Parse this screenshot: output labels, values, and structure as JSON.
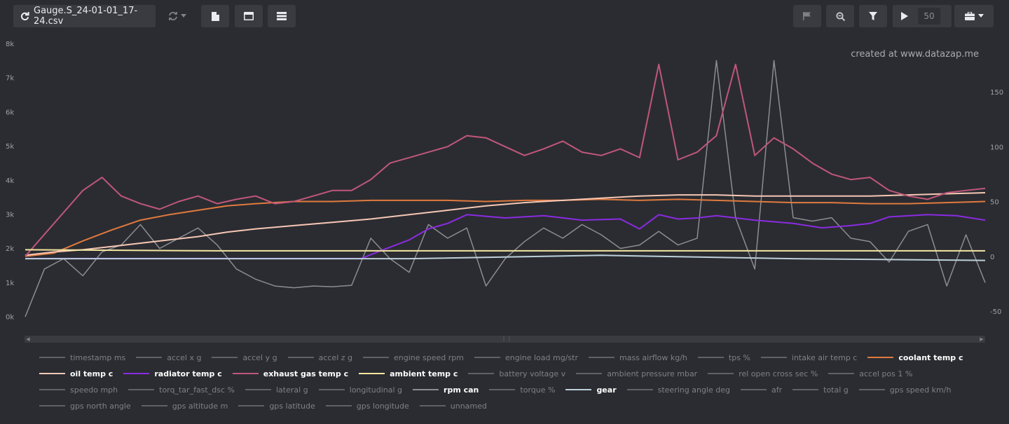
{
  "toolbar": {
    "file_name": "Gauge.S_24-01-01_17-24.csv",
    "playback_speed": "50"
  },
  "chart": {
    "watermark": "created at www.datazap.me"
  },
  "chart_data": {
    "type": "line",
    "xlabel": "",
    "ylabel": "",
    "y_left_ticks": [
      "8k",
      "7k",
      "6k",
      "5k",
      "4k",
      "3k",
      "2k",
      "1k",
      "0k"
    ],
    "y_right_ticks": [
      "150",
      "100",
      "50",
      "0",
      "-50"
    ],
    "ylim_left": [
      0,
      8000
    ],
    "ylim_right": [
      -50,
      150
    ],
    "grid": false,
    "series": [
      {
        "name": "rpm can",
        "color": "#8b8d91",
        "axis": "left",
        "x": [
          0,
          0.02,
          0.04,
          0.06,
          0.08,
          0.1,
          0.12,
          0.14,
          0.16,
          0.18,
          0.2,
          0.22,
          0.24,
          0.26,
          0.28,
          0.3,
          0.32,
          0.34,
          0.36,
          0.38,
          0.4,
          0.42,
          0.44,
          0.46,
          0.48,
          0.5,
          0.52,
          0.54,
          0.56,
          0.58,
          0.6,
          0.62,
          0.64,
          0.66,
          0.68,
          0.7,
          0.72,
          0.74,
          0.76,
          0.78,
          0.8,
          0.82,
          0.84,
          0.86,
          0.88,
          0.9,
          0.92,
          0.94,
          0.96,
          0.98,
          1
        ],
        "values": [
          0,
          1400,
          1700,
          1200,
          1900,
          2100,
          2700,
          2000,
          2300,
          2600,
          2100,
          1400,
          1100,
          900,
          850,
          900,
          880,
          920,
          2300,
          1700,
          1300,
          2700,
          2300,
          2600,
          900,
          1700,
          2200,
          2600,
          2300,
          2700,
          2400,
          2000,
          2100,
          2500,
          2100,
          2300,
          7500,
          2900,
          1400,
          7500,
          2900,
          2800,
          2900,
          2300,
          2200,
          1600,
          2500,
          2700,
          900,
          2400,
          1000
        ]
      },
      {
        "name": "coolant temp c",
        "color": "#e07a3f",
        "axis": "right",
        "x": [
          0,
          0.03,
          0.06,
          0.09,
          0.12,
          0.15,
          0.18,
          0.21,
          0.24,
          0.28,
          0.32,
          0.36,
          0.4,
          0.44,
          0.48,
          0.52,
          0.56,
          0.6,
          0.64,
          0.68,
          0.72,
          0.76,
          0.8,
          0.84,
          0.88,
          0.92,
          0.96,
          1
        ],
        "values": [
          0,
          3,
          14,
          24,
          33,
          38,
          42,
          46,
          48,
          50,
          50,
          51,
          51,
          51,
          50,
          51,
          51,
          52,
          51,
          52,
          51,
          50,
          49,
          49,
          48,
          48,
          49,
          50
        ]
      },
      {
        "name": "oil temp c",
        "color": "#f6c7b5",
        "axis": "right",
        "x": [
          0,
          0.03,
          0.06,
          0.09,
          0.12,
          0.15,
          0.18,
          0.21,
          0.24,
          0.28,
          0.32,
          0.36,
          0.4,
          0.44,
          0.48,
          0.52,
          0.56,
          0.6,
          0.64,
          0.68,
          0.72,
          0.76,
          0.8,
          0.84,
          0.88,
          0.92,
          0.96,
          1
        ],
        "values": [
          1,
          4,
          6,
          9,
          12,
          15,
          18,
          22,
          25,
          28,
          31,
          34,
          38,
          42,
          46,
          49,
          51,
          53,
          55,
          56,
          56,
          55,
          55,
          55,
          55,
          56,
          57,
          58
        ]
      },
      {
        "name": "radiator temp c",
        "color": "#8a2be2",
        "axis": "right",
        "x": [
          0,
          0.1,
          0.2,
          0.3,
          0.35,
          0.37,
          0.4,
          0.42,
          0.44,
          0.46,
          0.5,
          0.54,
          0.58,
          0.62,
          0.64,
          0.66,
          0.68,
          0.7,
          0.72,
          0.76,
          0.8,
          0.83,
          0.86,
          0.88,
          0.9,
          0.94,
          0.97,
          1
        ],
        "values": [
          -2,
          -2,
          -2,
          -2,
          -2,
          5,
          15,
          25,
          30,
          38,
          35,
          37,
          33,
          34,
          25,
          38,
          34,
          35,
          37,
          33,
          30,
          26,
          28,
          30,
          36,
          38,
          37,
          33
        ]
      },
      {
        "name": "exhaust gas temp c",
        "color": "#c0577a",
        "axis": "right",
        "x": [
          0,
          0.02,
          0.04,
          0.06,
          0.08,
          0.1,
          0.12,
          0.14,
          0.16,
          0.18,
          0.2,
          0.22,
          0.24,
          0.26,
          0.28,
          0.3,
          0.32,
          0.34,
          0.36,
          0.38,
          0.4,
          0.42,
          0.44,
          0.46,
          0.48,
          0.5,
          0.52,
          0.54,
          0.56,
          0.58,
          0.6,
          0.62,
          0.64,
          0.66,
          0.68,
          0.7,
          0.72,
          0.74,
          0.76,
          0.78,
          0.8,
          0.82,
          0.84,
          0.86,
          0.88,
          0.9,
          0.92,
          0.94,
          0.96,
          0.98,
          1
        ],
        "values": [
          0,
          20,
          40,
          60,
          72,
          55,
          48,
          43,
          50,
          55,
          48,
          52,
          55,
          48,
          50,
          55,
          60,
          60,
          70,
          85,
          90,
          95,
          100,
          110,
          108,
          100,
          92,
          98,
          105,
          95,
          92,
          98,
          90,
          175,
          88,
          95,
          110,
          175,
          92,
          108,
          98,
          85,
          75,
          70,
          72,
          60,
          55,
          52,
          58,
          60,
          62
        ]
      },
      {
        "name": "ambient temp c",
        "color": "#f3e6a1",
        "axis": "right",
        "x": [
          0,
          0.2,
          0.4,
          0.6,
          0.8,
          1
        ],
        "values": [
          6,
          5,
          5,
          5,
          5,
          5
        ]
      },
      {
        "name": "gear",
        "color": "#bcd0d9",
        "axis": "left",
        "x": [
          0,
          0.2,
          0.4,
          0.6,
          0.8,
          1
        ],
        "values": [
          1700,
          1700,
          1700,
          1800,
          1700,
          1650
        ]
      }
    ]
  },
  "legend": [
    {
      "label": "timestamp ms",
      "active": false,
      "color": "#5f6167"
    },
    {
      "label": "accel x g",
      "active": false,
      "color": "#5f6167"
    },
    {
      "label": "accel y g",
      "active": false,
      "color": "#5f6167"
    },
    {
      "label": "accel z g",
      "active": false,
      "color": "#5f6167"
    },
    {
      "label": "engine speed rpm",
      "active": false,
      "color": "#5f6167"
    },
    {
      "label": "engine load mg/str",
      "active": false,
      "color": "#5f6167"
    },
    {
      "label": "mass airflow kg/h",
      "active": false,
      "color": "#5f6167"
    },
    {
      "label": "tps %",
      "active": false,
      "color": "#5f6167"
    },
    {
      "label": "intake air temp c",
      "active": false,
      "color": "#5f6167"
    },
    {
      "label": "coolant temp c",
      "active": true,
      "color": "#e07a3f"
    },
    {
      "label": "oil temp c",
      "active": true,
      "color": "#f6c7b5"
    },
    {
      "label": "radiator temp c",
      "active": true,
      "color": "#8a2be2"
    },
    {
      "label": "exhaust gas temp c",
      "active": true,
      "color": "#c0577a"
    },
    {
      "label": "ambient temp c",
      "active": true,
      "color": "#f3e6a1"
    },
    {
      "label": "battery voltage v",
      "active": false,
      "color": "#5f6167"
    },
    {
      "label": "ambient pressure mbar",
      "active": false,
      "color": "#5f6167"
    },
    {
      "label": "rel open cross sec %",
      "active": false,
      "color": "#5f6167"
    },
    {
      "label": "accel pos 1 %",
      "active": false,
      "color": "#5f6167"
    },
    {
      "label": "speedo mph",
      "active": false,
      "color": "#5f6167"
    },
    {
      "label": "torq_tar_fast_dsc %",
      "active": false,
      "color": "#5f6167"
    },
    {
      "label": "lateral g",
      "active": false,
      "color": "#5f6167"
    },
    {
      "label": "longitudinal g",
      "active": false,
      "color": "#5f6167"
    },
    {
      "label": "rpm can",
      "active": true,
      "color": "#8b8d91"
    },
    {
      "label": "torque %",
      "active": false,
      "color": "#5f6167"
    },
    {
      "label": "gear",
      "active": true,
      "color": "#bcd0d9"
    },
    {
      "label": "steering angle deg",
      "active": false,
      "color": "#5f6167"
    },
    {
      "label": "afr",
      "active": false,
      "color": "#5f6167"
    },
    {
      "label": "total g",
      "active": false,
      "color": "#5f6167"
    },
    {
      "label": "gps speed km/h",
      "active": false,
      "color": "#5f6167"
    },
    {
      "label": "gps north angle",
      "active": false,
      "color": "#5f6167"
    },
    {
      "label": "gps altitude m",
      "active": false,
      "color": "#5f6167"
    },
    {
      "label": "gps latitude",
      "active": false,
      "color": "#5f6167"
    },
    {
      "label": "gps longitude",
      "active": false,
      "color": "#5f6167"
    },
    {
      "label": "unnamed",
      "active": false,
      "color": "#5f6167"
    }
  ]
}
